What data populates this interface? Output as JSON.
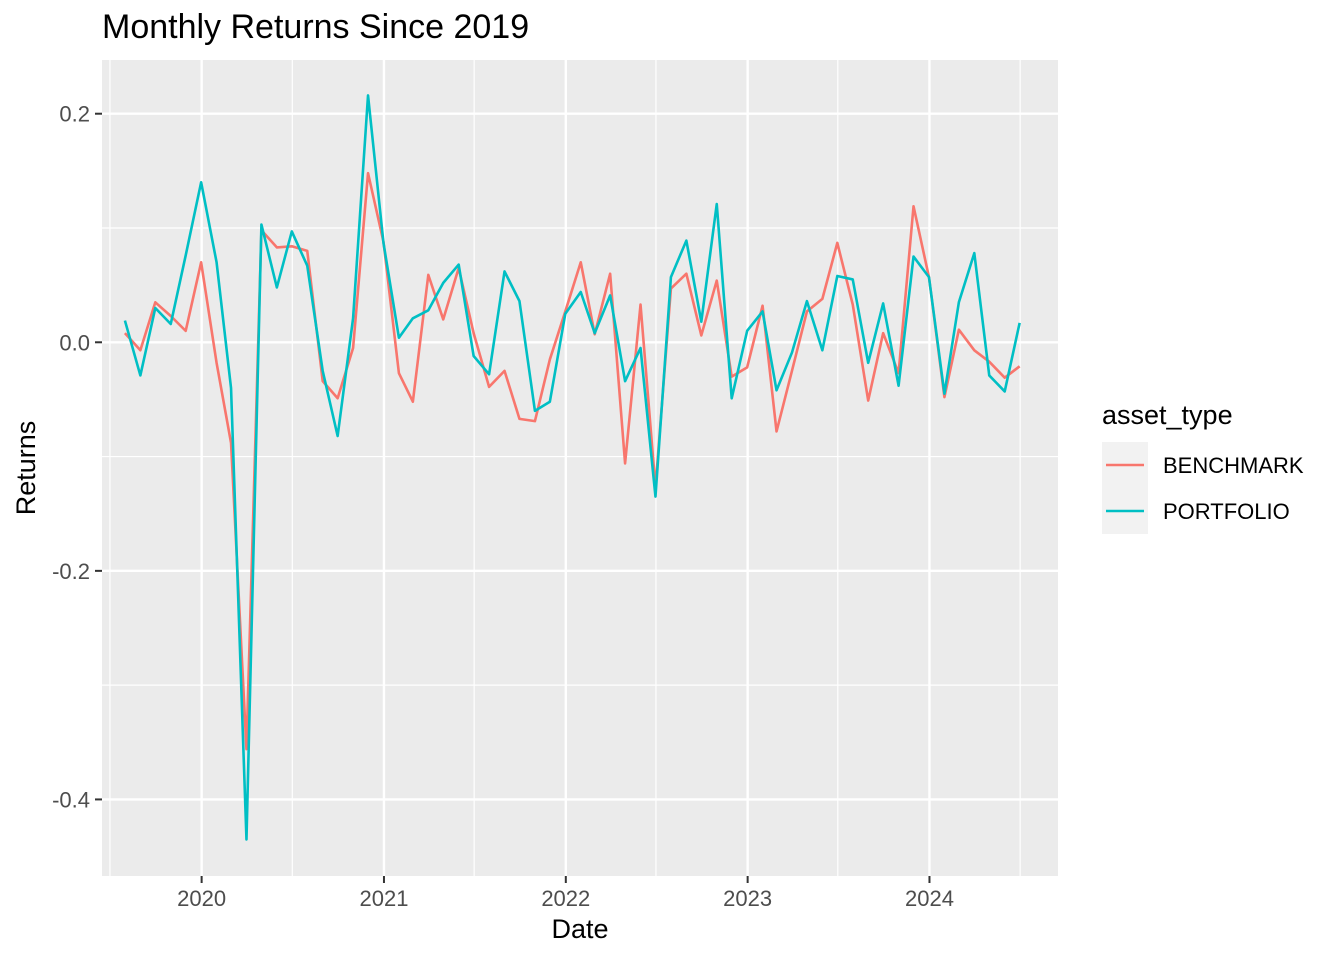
{
  "chart_data": {
    "type": "line",
    "title": "Monthly Returns Since 2019",
    "xlabel": "Date",
    "ylabel": "Returns",
    "x_tick_labels": [
      "2020",
      "2021",
      "2022",
      "2023",
      "2024"
    ],
    "y_tick_labels": [
      "-0.4",
      "-0.2",
      "0.0",
      "0.2"
    ],
    "y_ticks": [
      -0.4,
      -0.2,
      0.0,
      0.2
    ],
    "xlim": [
      "2019-06-15",
      "2024-09-15"
    ],
    "ylim": [
      -0.467,
      0.247
    ],
    "grid": true,
    "legend_position": "right",
    "legend_title": "asset_type",
    "x": [
      "2019-07-31",
      "2019-08-31",
      "2019-09-30",
      "2019-10-31",
      "2019-11-30",
      "2019-12-31",
      "2020-01-31",
      "2020-02-29",
      "2020-03-31",
      "2020-04-30",
      "2020-05-31",
      "2020-06-30",
      "2020-07-31",
      "2020-08-31",
      "2020-09-30",
      "2020-10-31",
      "2020-11-30",
      "2020-12-31",
      "2021-01-31",
      "2021-02-28",
      "2021-03-31",
      "2021-04-30",
      "2021-05-31",
      "2021-06-30",
      "2021-07-31",
      "2021-08-31",
      "2021-09-30",
      "2021-10-31",
      "2021-11-30",
      "2021-12-31",
      "2022-01-31",
      "2022-02-28",
      "2022-03-31",
      "2022-04-30",
      "2022-05-31",
      "2022-06-30",
      "2022-07-31",
      "2022-08-31",
      "2022-09-30",
      "2022-10-31",
      "2022-11-30",
      "2022-12-31",
      "2023-01-31",
      "2023-02-28",
      "2023-03-31",
      "2023-04-30",
      "2023-05-31",
      "2023-06-30",
      "2023-07-31",
      "2023-08-31",
      "2023-09-30",
      "2023-10-31",
      "2023-11-30",
      "2023-12-31",
      "2024-01-31",
      "2024-02-29",
      "2024-03-31",
      "2024-04-30",
      "2024-05-31",
      "2024-06-30"
    ],
    "series": [
      {
        "name": "BENCHMARK",
        "color": "#F8766D",
        "values": [
          0.008,
          -0.007,
          0.035,
          0.023,
          0.01,
          0.07,
          -0.018,
          -0.088,
          -0.356,
          0.098,
          0.083,
          0.084,
          0.08,
          -0.034,
          -0.049,
          -0.005,
          0.148,
          0.088,
          -0.027,
          -0.052,
          0.059,
          0.02,
          0.065,
          0.008,
          -0.039,
          -0.025,
          -0.067,
          -0.069,
          -0.015,
          0.027,
          0.07,
          0.007,
          0.06,
          -0.106,
          0.033,
          -0.127,
          0.047,
          0.06,
          0.006,
          0.054,
          -0.03,
          -0.022,
          0.032,
          -0.078,
          -0.025,
          0.027,
          0.038,
          0.087,
          0.033,
          -0.051,
          0.008,
          -0.027,
          0.119,
          0.057,
          -0.048,
          0.011,
          -0.007,
          -0.017,
          -0.031,
          -0.021
        ]
      },
      {
        "name": "PORTFOLIO",
        "color": "#00BFC4",
        "values": [
          0.019,
          -0.029,
          0.03,
          0.016,
          0.076,
          0.14,
          0.07,
          -0.04,
          -0.435,
          0.103,
          0.048,
          0.097,
          0.067,
          -0.025,
          -0.082,
          0.021,
          0.216,
          0.087,
          0.004,
          0.021,
          0.028,
          0.052,
          0.068,
          -0.012,
          -0.028,
          0.062,
          0.036,
          -0.06,
          -0.052,
          0.025,
          0.044,
          0.008,
          0.041,
          -0.034,
          -0.005,
          -0.135,
          0.057,
          0.089,
          0.018,
          0.121,
          -0.049,
          0.01,
          0.027,
          -0.042,
          -0.009,
          0.036,
          -0.007,
          0.058,
          0.055,
          -0.018,
          0.034,
          -0.038,
          0.075,
          0.057,
          -0.045,
          0.035,
          0.078,
          -0.029,
          -0.043,
          0.017
        ]
      }
    ]
  }
}
